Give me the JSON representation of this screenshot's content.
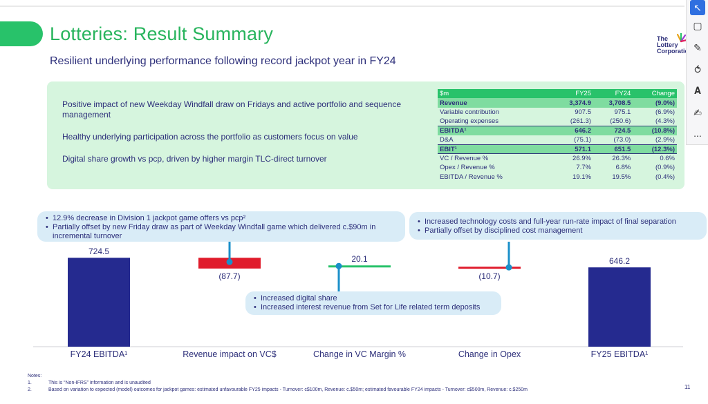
{
  "slide": {
    "title": "Lotteries: Result Summary",
    "subtitle": "Resilient underlying performance following record jackpot year in FY24",
    "page_number": "11"
  },
  "logo": {
    "line1": "The",
    "line2": "Lottery",
    "line3": "Corporation"
  },
  "tools": {
    "icons": [
      "cursor-icon",
      "comment-icon",
      "pen-icon",
      "lasso-icon",
      "text-select-icon",
      "highlighter-icon",
      "more-icon"
    ],
    "more": "..."
  },
  "highlights": [
    "Positive impact of new Weekday Windfall draw on Fridays and active portfolio and sequence management",
    "Healthy underlying participation across the portfolio as customers focus on value",
    "Digital share growth vs pcp, driven by higher margin TLC-direct turnover"
  ],
  "table": {
    "header": [
      "$m",
      "FY25",
      "FY24",
      "Change"
    ],
    "rows": [
      {
        "label": "Revenue",
        "fy25": "3,374.9",
        "fy24": "3,708.5",
        "change": "(9.0%)"
      },
      {
        "label": "Variable contribution",
        "fy25": "907.5",
        "fy24": "975.1",
        "change": "(6.9%)"
      },
      {
        "label": "Operating expenses",
        "fy25": "(261.3)",
        "fy24": "(250.6)",
        "change": "(4.3%)"
      },
      {
        "label": "EBITDA¹",
        "fy25": "646.2",
        "fy24": "724.5",
        "change": "(10.8%)"
      },
      {
        "label": "D&A",
        "fy25": "(75.1)",
        "fy24": "(73.0)",
        "change": "(2.9%)"
      },
      {
        "label": "EBIT¹",
        "fy25": "571.1",
        "fy24": "651.5",
        "change": "(12.3%)"
      },
      {
        "label": "VC / Revenue %",
        "fy25": "26.9%",
        "fy24": "26.3%",
        "change": "0.6%"
      },
      {
        "label": "Opex / Revenue %",
        "fy25": "7.7%",
        "fy24": "6.8%",
        "change": "(0.9%)"
      },
      {
        "label": "EBITDA / Revenue %",
        "fy25": "19.1%",
        "fy24": "19.5%",
        "change": "(0.4%)"
      }
    ]
  },
  "callouts": {
    "revenue": [
      "12.9% decrease in Division 1 jackpot game offers vs pcp²",
      "Partially offset by new Friday draw as part of Weekday Windfall game which delivered c.$90m in incremental turnover"
    ],
    "opex": [
      "Increased technology costs and full-year run-rate impact of final separation",
      "Partially offset by disciplined cost management"
    ],
    "margin": [
      "Increased digital share",
      "Increased interest revenue from Set for Life related term deposits"
    ]
  },
  "chart_data": {
    "type": "bar",
    "subtype": "waterfall",
    "categories": [
      "FY24 EBITDA¹",
      "Revenue impact on VC$",
      "Change in VC Margin %",
      "Change in Opex",
      "FY25 EBITDA¹"
    ],
    "values": [
      724.5,
      -87.7,
      20.1,
      -10.7,
      646.2
    ],
    "value_labels": [
      "724.5",
      "(87.7)",
      "20.1",
      "(10.7)",
      "646.2"
    ],
    "colors": {
      "total": "#252a8f",
      "decrease": "#e01c2c",
      "increase": "#28c26a",
      "connector": "#1a8fc9"
    }
  },
  "notes": {
    "heading": "Notes:",
    "items": [
      {
        "n": "1.",
        "text": "This is “Non-IFRS” information and is unaudited"
      },
      {
        "n": "2.",
        "text": "Based on variation to expected (model) outcomes for jackpot games: estimated unfavourable FY25 impacts - Turnover: c$100m, Revenue: c.$50m; estimated favourable FY24 impacts - Turnover: c$500m, Revenue: c.$250m"
      }
    ]
  }
}
